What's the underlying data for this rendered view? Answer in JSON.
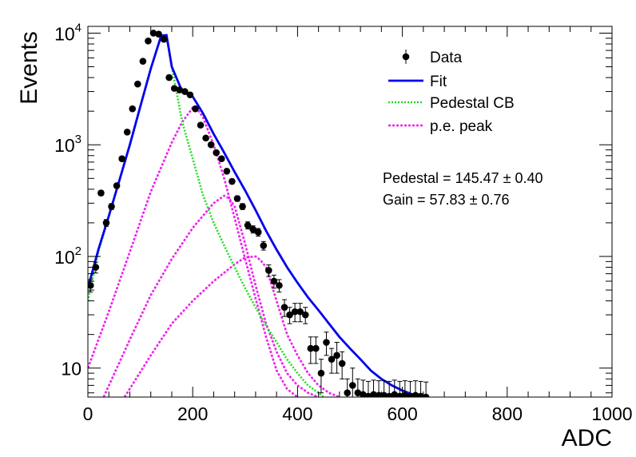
{
  "chart_data": {
    "type": "scatter",
    "xlabel": "ADC",
    "ylabel": "Events",
    "xlim": [
      0,
      1000
    ],
    "ylim": [
      5.5,
      11500
    ],
    "yscale": "log",
    "grid": false,
    "x_ticks": [
      "0",
      "200",
      "400",
      "600",
      "800",
      "1000"
    ],
    "y_ticks": [
      {
        "base": "10",
        "exp": "",
        "value": 10
      },
      {
        "base": "10",
        "exp": "2",
        "value": 100
      },
      {
        "base": "10",
        "exp": "3",
        "value": 1000
      },
      {
        "base": "10",
        "exp": "4",
        "value": 10000
      }
    ],
    "legend": {
      "placement": "top-right",
      "entries": [
        {
          "label": "Data",
          "style": "marker",
          "color": "#000000"
        },
        {
          "label": "Fit",
          "style": "solid",
          "color": "#0000ee"
        },
        {
          "label": "Pedestal CB",
          "style": "dotted",
          "color": "#22dd22"
        },
        {
          "label": "p.e. peak",
          "style": "dotted",
          "color": "#ee22ee"
        }
      ]
    },
    "annotations": [
      {
        "name": "pedestal",
        "text": "Pedestal = 145.47 ± 0.40"
      },
      {
        "name": "gain",
        "text": "Gain = 57.83 ± 0.76"
      }
    ],
    "data_points": {
      "x": [
        5,
        15,
        25,
        35,
        45,
        55,
        65,
        75,
        85,
        95,
        105,
        115,
        125,
        135,
        145,
        155,
        165,
        175,
        185,
        195,
        205,
        215,
        225,
        235,
        245,
        255,
        265,
        275,
        285,
        295,
        305,
        315,
        325,
        335,
        345,
        355,
        365,
        375,
        385,
        395,
        405,
        415,
        425,
        435,
        445,
        455,
        465,
        475,
        485,
        495,
        505,
        515,
        525,
        535,
        545,
        555,
        565,
        575,
        585,
        595,
        605,
        615,
        625,
        635,
        645
      ],
      "y": [
        55,
        80,
        370,
        200,
        280,
        430,
        750,
        1300,
        2100,
        3500,
        5600,
        8500,
        10000,
        9800,
        8800,
        4000,
        3200,
        3100,
        3000,
        2800,
        2100,
        1500,
        1150,
        1000,
        850,
        750,
        580,
        470,
        330,
        280,
        190,
        175,
        165,
        125,
        75,
        60,
        55,
        35,
        30,
        32,
        32,
        30,
        15,
        15,
        9,
        17,
        12,
        13,
        11,
        6,
        7,
        6,
        5.8,
        5.6,
        5.8,
        5.7,
        5.7,
        5.6,
        5.8,
        5.6,
        5.7,
        5.6,
        5.7,
        5.6,
        5.5
      ],
      "err": [
        7,
        9,
        19,
        14,
        17,
        21,
        27,
        36,
        46,
        59,
        75,
        92,
        100,
        99,
        94,
        63,
        57,
        56,
        55,
        53,
        46,
        39,
        34,
        32,
        29,
        27,
        24,
        22,
        18,
        17,
        14,
        13,
        13,
        11,
        9,
        8,
        7,
        6,
        5,
        6,
        6,
        5,
        4,
        4,
        3,
        4,
        3,
        4,
        3,
        2,
        3,
        2,
        2,
        2,
        2,
        2,
        2,
        2,
        2,
        2,
        2,
        2,
        2,
        2,
        2
      ]
    },
    "fit": {
      "label": "Fit",
      "x": [
        0,
        20,
        40,
        60,
        80,
        100,
        120,
        140,
        150,
        160,
        180,
        200,
        220,
        240,
        260,
        280,
        300,
        320,
        340,
        360,
        380,
        400,
        420,
        440,
        460,
        480,
        500,
        520,
        540,
        560,
        580,
        600,
        620,
        640,
        650
      ],
      "y": [
        52,
        115,
        230,
        480,
        1000,
        2200,
        4800,
        9500,
        9600,
        5000,
        3000,
        2700,
        1900,
        1250,
        850,
        570,
        390,
        260,
        170,
        115,
        80,
        58,
        43,
        33,
        25,
        19,
        15,
        12,
        9.5,
        8,
        7,
        6.3,
        5.8,
        5.5,
        5.3
      ]
    },
    "pedestal_cb": {
      "label": "Pedestal CB",
      "x": [
        0,
        20,
        40,
        60,
        80,
        100,
        120,
        140,
        150,
        160,
        180,
        200,
        220,
        240,
        260,
        280,
        300,
        320,
        340,
        360,
        380,
        400,
        420,
        440,
        450
      ],
      "y": [
        40,
        110,
        230,
        480,
        1000,
        2200,
        4800,
        9500,
        9600,
        5000,
        1600,
        750,
        350,
        200,
        125,
        80,
        52,
        35,
        24,
        17,
        12,
        9,
        7,
        6,
        5.5
      ]
    },
    "pe_peaks": [
      {
        "label": "p.e. peak",
        "x": [
          0,
          40,
          80,
          120,
          160,
          180,
          200,
          210,
          220,
          240,
          260,
          280,
          300,
          320,
          340,
          360,
          380,
          400
        ],
        "y": [
          10,
          32,
          110,
          380,
          1050,
          1600,
          2150,
          2050,
          1750,
          1000,
          500,
          220,
          95,
          42,
          19,
          9.5,
          6.5,
          5.5
        ]
      },
      {
        "label": "p.e. peak",
        "x": [
          30,
          80,
          120,
          160,
          200,
          240,
          260,
          270,
          280,
          300,
          320,
          340,
          360,
          380,
          400,
          420,
          440
        ],
        "y": [
          5.5,
          18,
          45,
          95,
          180,
          300,
          350,
          330,
          280,
          130,
          55,
          25,
          14,
          9,
          7,
          6,
          5.5
        ]
      },
      {
        "label": "p.e. peak",
        "x": [
          70,
          120,
          160,
          200,
          240,
          280,
          300,
          320,
          330,
          340,
          360,
          380,
          400,
          420,
          440,
          460,
          480
        ],
        "y": [
          5.5,
          13,
          25,
          40,
          60,
          85,
          98,
          100,
          92,
          80,
          40,
          20,
          13,
          9,
          7,
          6,
          5.5
        ]
      }
    ]
  }
}
